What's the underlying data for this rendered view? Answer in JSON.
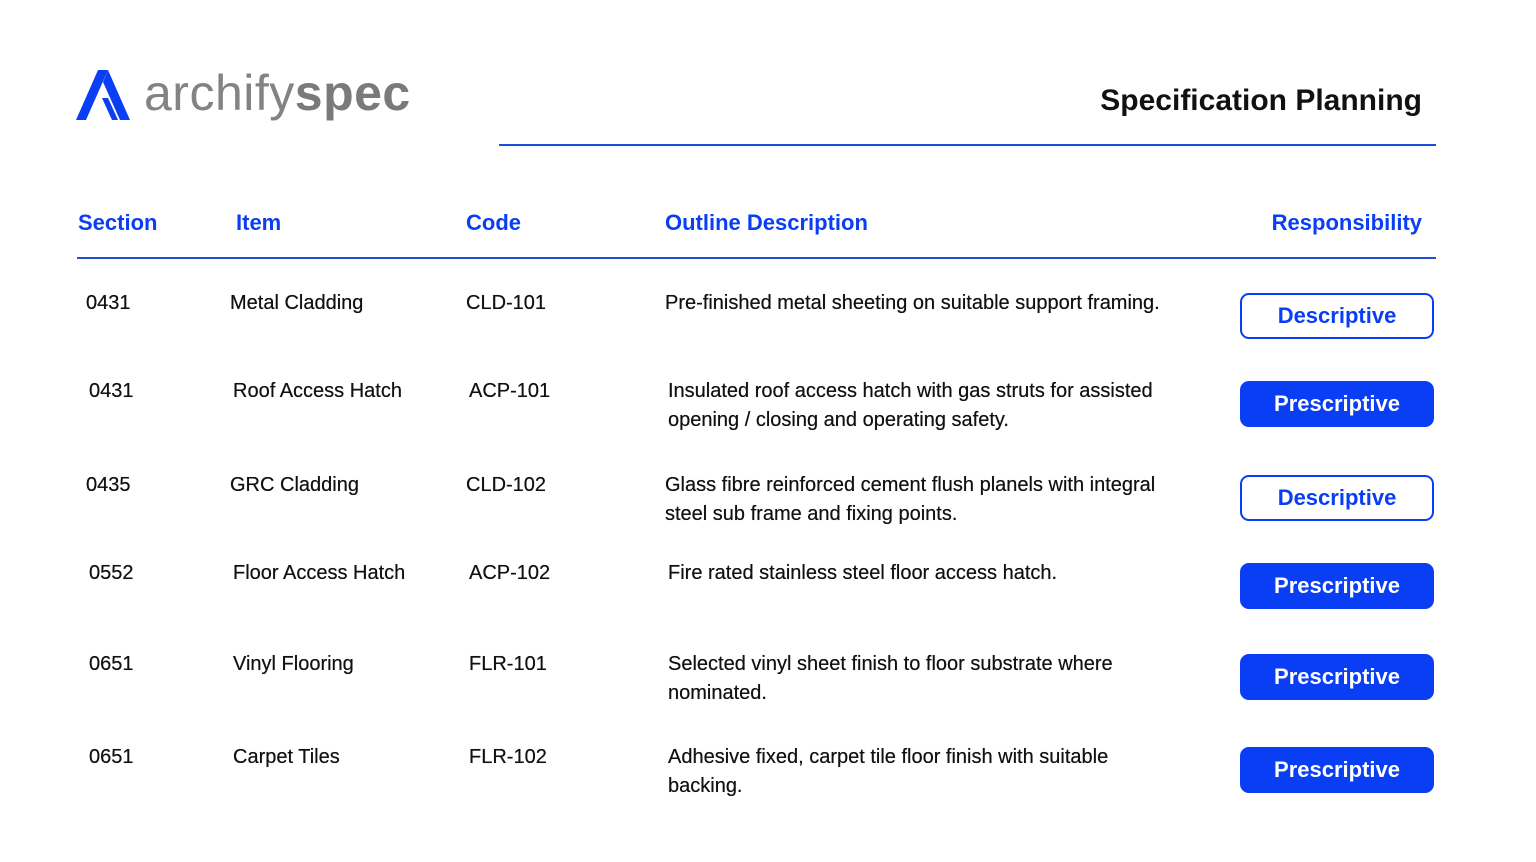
{
  "brand": {
    "name_light": "archify",
    "name_bold": "spec",
    "accent": "#0a3ef5"
  },
  "header": {
    "title": "Specification Planning"
  },
  "columns": [
    "Section",
    "Item",
    "Code",
    "Outline Description",
    "Responsibility"
  ],
  "rows": [
    {
      "section": "0431",
      "item": "Metal Cladding",
      "code": "CLD-101",
      "description": "Pre-finished metal sheeting on suitable support framing.",
      "responsibility": "Descriptive"
    },
    {
      "section": "0431",
      "item": "Roof Access Hatch",
      "code": "ACP-101",
      "description": "Insulated roof access hatch with gas struts for assisted opening / closing and operating safety.",
      "responsibility": "Prescriptive"
    },
    {
      "section": "0435",
      "item": "GRC Cladding",
      "code": "CLD-102",
      "description": "Glass fibre reinforced cement flush planels with integral steel sub frame and fixing points.",
      "responsibility": "Descriptive"
    },
    {
      "section": "0552",
      "item": "Floor Access Hatch",
      "code": "ACP-102",
      "description": "Fire rated stainless steel floor access hatch.",
      "responsibility": "Prescriptive"
    },
    {
      "section": "0651",
      "item": "Vinyl Flooring",
      "code": "FLR-101",
      "description": "Selected vinyl sheet finish to floor substrate where nominated.",
      "responsibility": "Prescriptive"
    },
    {
      "section": "0651",
      "item": "Carpet Tiles",
      "code": "FLR-102",
      "description": "Adhesive fixed, carpet tile floor finish with suitable backing.",
      "responsibility": "Prescriptive"
    }
  ]
}
